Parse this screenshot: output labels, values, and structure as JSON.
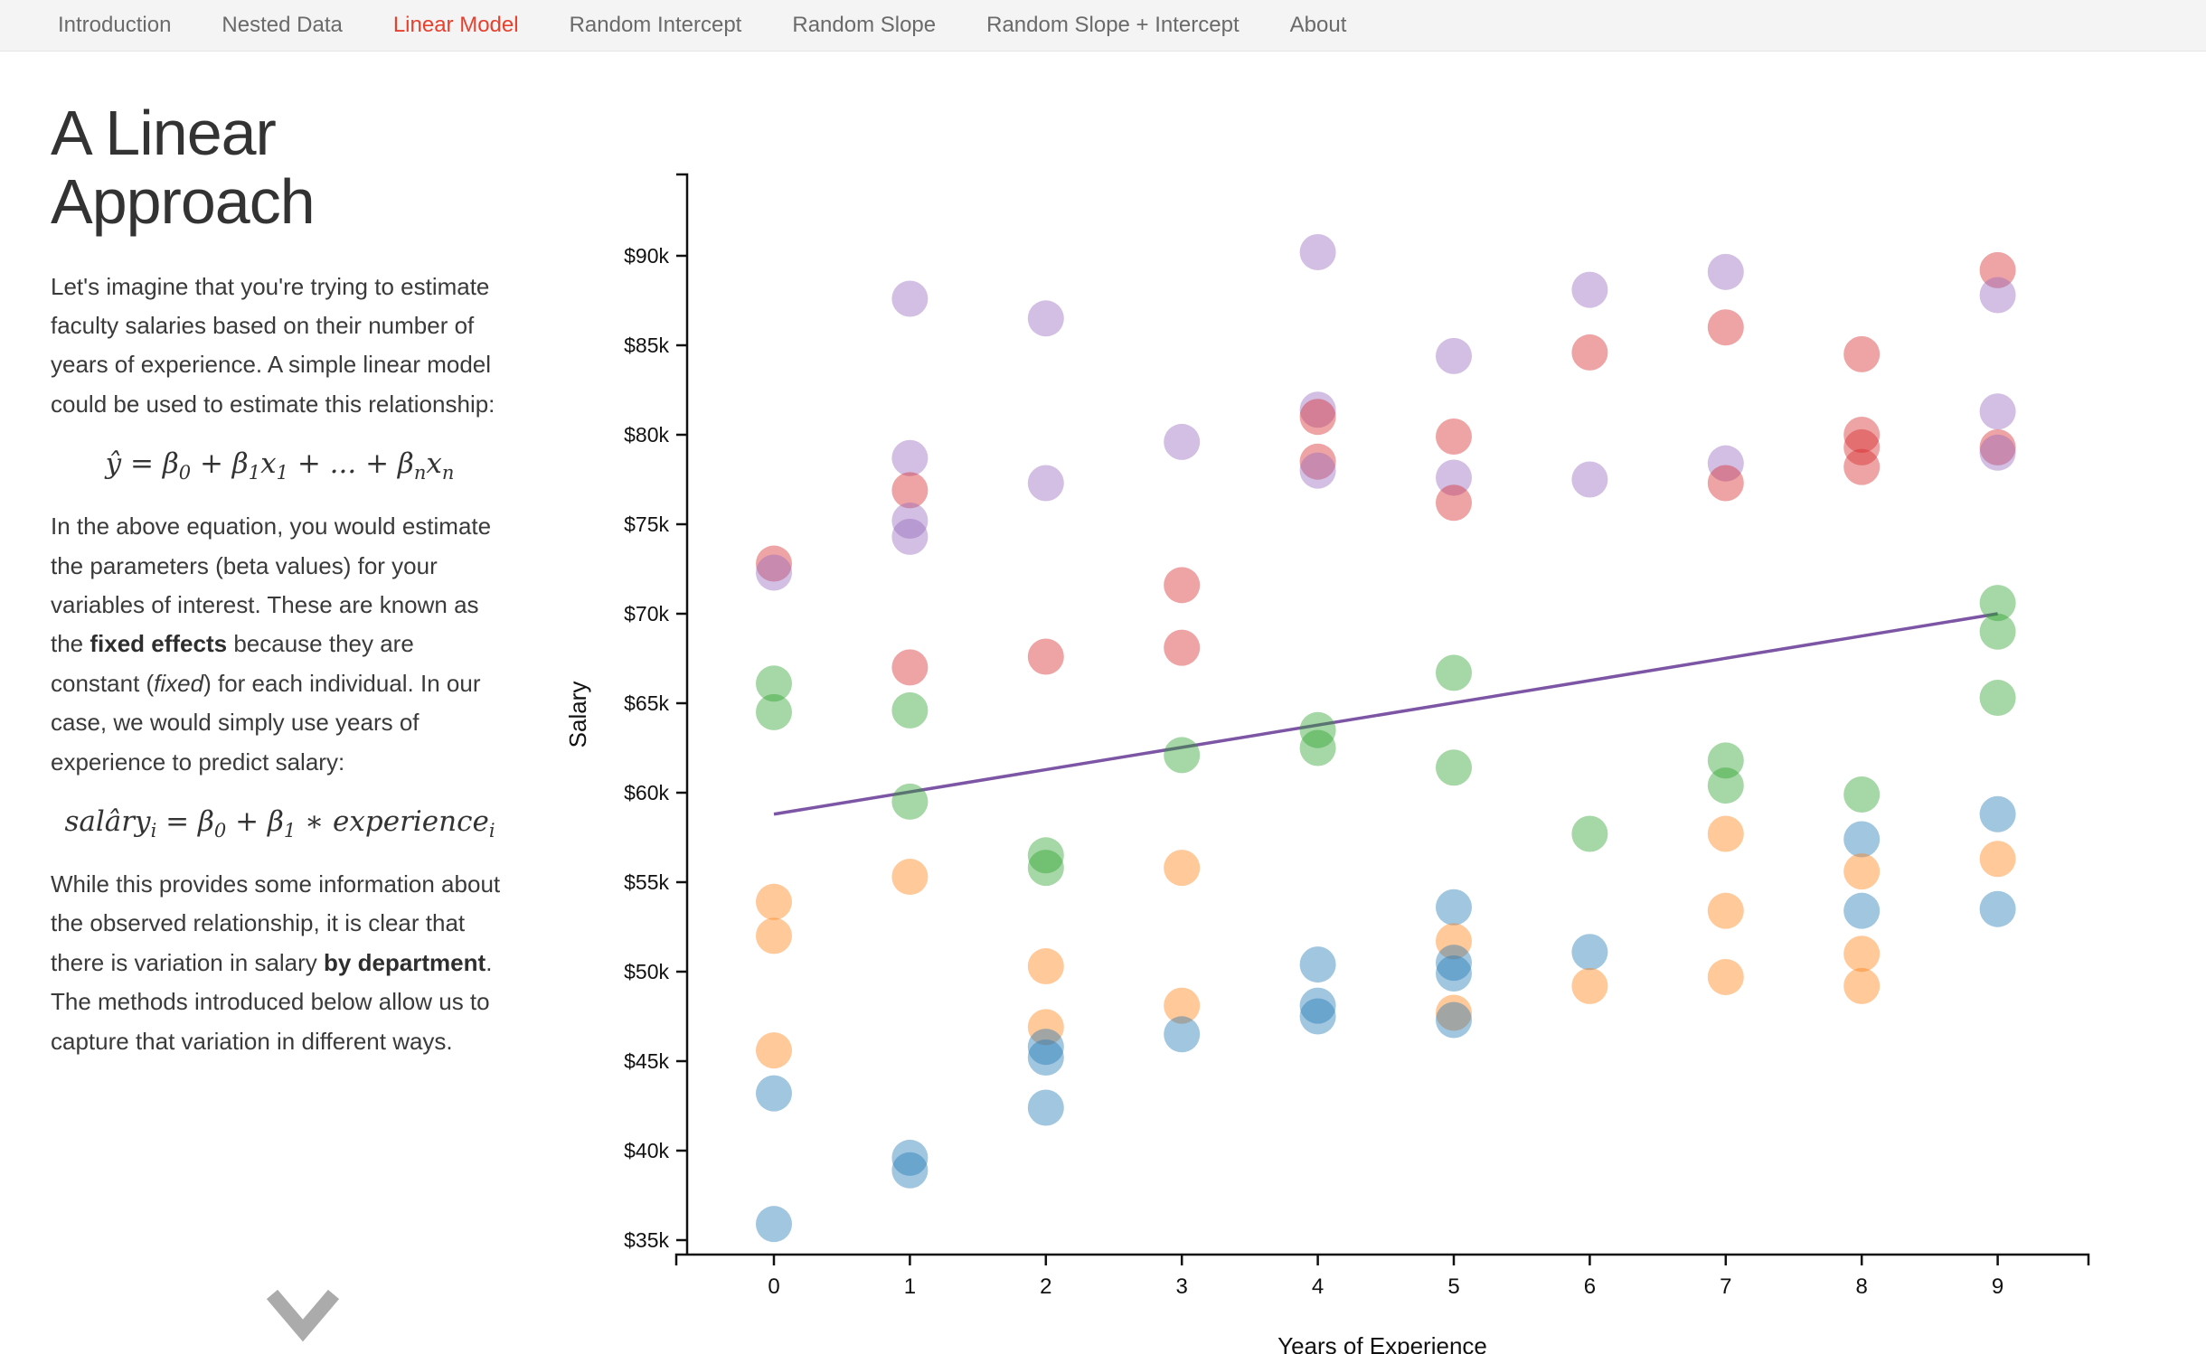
{
  "nav": {
    "items": [
      {
        "label": "Introduction",
        "active": false
      },
      {
        "label": "Nested Data",
        "active": false
      },
      {
        "label": "Linear Model",
        "active": true
      },
      {
        "label": "Random Intercept",
        "active": false
      },
      {
        "label": "Random Slope",
        "active": false
      },
      {
        "label": "Random Slope + Intercept",
        "active": false
      },
      {
        "label": "About",
        "active": false
      }
    ],
    "active_color": "#e8402f"
  },
  "article": {
    "title": "A Linear Approach",
    "p1": "Let's imagine that you're trying to estimate faculty salaries based on their number of years of experience. A simple linear model could be used to estimate this relationship:",
    "p2": [
      {
        "v": "In the above equation, you would estimate the parameters (beta values) for your variables of interest. These are known as the "
      },
      {
        "v": "fixed effects",
        "bold": true
      },
      {
        "v": " because they are constant ("
      },
      {
        "v": "fixed",
        "italic": true
      },
      {
        "v": ") for each individual. In our case, we would simply use years of experience to predict salary:"
      }
    ],
    "p3": [
      {
        "v": "While this provides some information about the observed relationship, it is clear that there is variation in salary "
      },
      {
        "v": "by department",
        "bold": true
      },
      {
        "v": ". The methods introduced below allow us to capture that variation in different ways."
      }
    ],
    "equations": {
      "linear": [
        {
          "v": "ŷ = β"
        },
        {
          "v": "0",
          "sub": true
        },
        {
          "v": " + β"
        },
        {
          "v": "1",
          "sub": true
        },
        {
          "v": "x"
        },
        {
          "v": "1",
          "sub": true
        },
        {
          "v": " + ... + β"
        },
        {
          "v": "n",
          "sub": true
        },
        {
          "v": "x"
        },
        {
          "v": "n",
          "sub": true
        }
      ],
      "salary": [
        {
          "v": "salâry"
        },
        {
          "v": "i",
          "sub": true
        },
        {
          "v": " = β"
        },
        {
          "v": "0",
          "sub": true
        },
        {
          "v": " + β"
        },
        {
          "v": "1",
          "sub": true
        },
        {
          "v": " ∗ experience"
        },
        {
          "v": "i",
          "sub": true
        }
      ]
    }
  },
  "chart_data": {
    "type": "scatter",
    "xlabel": "Years of Experience",
    "ylabel": "Salary",
    "x_ticks": [
      0,
      1,
      2,
      3,
      4,
      5,
      6,
      7,
      8,
      9
    ],
    "y_ticks": [
      {
        "value": 35,
        "label": "$35k"
      },
      {
        "value": 40,
        "label": "$40k"
      },
      {
        "value": 45,
        "label": "$45k"
      },
      {
        "value": 50,
        "label": "$50k"
      },
      {
        "value": 55,
        "label": "$55k"
      },
      {
        "value": 60,
        "label": "$60k"
      },
      {
        "value": 65,
        "label": "$65k"
      },
      {
        "value": 70,
        "label": "$70k"
      },
      {
        "value": 75,
        "label": "$75k"
      },
      {
        "value": 80,
        "label": "$80k"
      },
      {
        "value": 85,
        "label": "$85k"
      },
      {
        "value": 90,
        "label": "$90k"
      }
    ],
    "xlim": [
      -0.72,
      9.67
    ],
    "ylim": [
      34.2,
      94.5
    ],
    "y_units": "thousands of dollars",
    "departments": {
      "blue": "#1f77b4",
      "orange": "#ff7f0e",
      "green": "#2ca02c",
      "red": "#d62728",
      "purple": "#9467bd"
    },
    "point_opacity": 0.42,
    "point_radius": 20,
    "trend_line": {
      "x1": 0,
      "y1": 58.8,
      "x2": 9,
      "y2": 70.0,
      "color": "#7d55a5"
    },
    "points": [
      {
        "x": 0,
        "y": 72.8,
        "d": "red"
      },
      {
        "x": 0,
        "y": 72.3,
        "d": "purple"
      },
      {
        "x": 0,
        "y": 66.1,
        "d": "green"
      },
      {
        "x": 0,
        "y": 64.5,
        "d": "green"
      },
      {
        "x": 0,
        "y": 53.9,
        "d": "orange"
      },
      {
        "x": 0,
        "y": 52.0,
        "d": "orange"
      },
      {
        "x": 0,
        "y": 45.6,
        "d": "orange"
      },
      {
        "x": 0,
        "y": 43.2,
        "d": "blue"
      },
      {
        "x": 0,
        "y": 35.9,
        "d": "blue"
      },
      {
        "x": 1,
        "y": 87.6,
        "d": "purple"
      },
      {
        "x": 1,
        "y": 78.7,
        "d": "purple"
      },
      {
        "x": 1,
        "y": 76.9,
        "d": "red"
      },
      {
        "x": 1,
        "y": 75.2,
        "d": "purple"
      },
      {
        "x": 1,
        "y": 74.3,
        "d": "purple"
      },
      {
        "x": 1,
        "y": 67.0,
        "d": "red"
      },
      {
        "x": 1,
        "y": 64.6,
        "d": "green"
      },
      {
        "x": 1,
        "y": 59.5,
        "d": "green"
      },
      {
        "x": 1,
        "y": 55.3,
        "d": "orange"
      },
      {
        "x": 1,
        "y": 39.6,
        "d": "blue"
      },
      {
        "x": 1,
        "y": 38.9,
        "d": "blue"
      },
      {
        "x": 2,
        "y": 86.5,
        "d": "purple"
      },
      {
        "x": 2,
        "y": 77.3,
        "d": "purple"
      },
      {
        "x": 2,
        "y": 67.6,
        "d": "red"
      },
      {
        "x": 2,
        "y": 56.5,
        "d": "green"
      },
      {
        "x": 2,
        "y": 55.8,
        "d": "green"
      },
      {
        "x": 2,
        "y": 50.3,
        "d": "orange"
      },
      {
        "x": 2,
        "y": 46.9,
        "d": "orange"
      },
      {
        "x": 2,
        "y": 45.8,
        "d": "blue"
      },
      {
        "x": 2,
        "y": 45.2,
        "d": "blue"
      },
      {
        "x": 2,
        "y": 42.4,
        "d": "blue"
      },
      {
        "x": 3,
        "y": 79.6,
        "d": "purple"
      },
      {
        "x": 3,
        "y": 71.6,
        "d": "red"
      },
      {
        "x": 3,
        "y": 68.1,
        "d": "red"
      },
      {
        "x": 3,
        "y": 62.1,
        "d": "green"
      },
      {
        "x": 3,
        "y": 55.8,
        "d": "orange"
      },
      {
        "x": 3,
        "y": 48.1,
        "d": "orange"
      },
      {
        "x": 3,
        "y": 46.5,
        "d": "blue"
      },
      {
        "x": 4,
        "y": 90.2,
        "d": "purple"
      },
      {
        "x": 4,
        "y": 81.4,
        "d": "purple"
      },
      {
        "x": 4,
        "y": 81.0,
        "d": "red"
      },
      {
        "x": 4,
        "y": 78.5,
        "d": "red"
      },
      {
        "x": 4,
        "y": 78.0,
        "d": "purple"
      },
      {
        "x": 4,
        "y": 63.5,
        "d": "green"
      },
      {
        "x": 4,
        "y": 62.5,
        "d": "green"
      },
      {
        "x": 4,
        "y": 50.4,
        "d": "blue"
      },
      {
        "x": 4,
        "y": 48.1,
        "d": "blue"
      },
      {
        "x": 4,
        "y": 47.5,
        "d": "blue"
      },
      {
        "x": 5,
        "y": 84.4,
        "d": "purple"
      },
      {
        "x": 5,
        "y": 79.9,
        "d": "red"
      },
      {
        "x": 5,
        "y": 77.6,
        "d": "purple"
      },
      {
        "x": 5,
        "y": 76.2,
        "d": "red"
      },
      {
        "x": 5,
        "y": 66.7,
        "d": "green"
      },
      {
        "x": 5,
        "y": 61.4,
        "d": "green"
      },
      {
        "x": 5,
        "y": 53.6,
        "d": "blue"
      },
      {
        "x": 5,
        "y": 51.7,
        "d": "orange"
      },
      {
        "x": 5,
        "y": 50.5,
        "d": "blue"
      },
      {
        "x": 5,
        "y": 49.9,
        "d": "blue"
      },
      {
        "x": 5,
        "y": 47.7,
        "d": "orange"
      },
      {
        "x": 5,
        "y": 47.3,
        "d": "blue"
      },
      {
        "x": 6,
        "y": 88.1,
        "d": "purple"
      },
      {
        "x": 6,
        "y": 84.6,
        "d": "red"
      },
      {
        "x": 6,
        "y": 77.5,
        "d": "purple"
      },
      {
        "x": 6,
        "y": 57.7,
        "d": "green"
      },
      {
        "x": 6,
        "y": 51.1,
        "d": "blue"
      },
      {
        "x": 6,
        "y": 49.2,
        "d": "orange"
      },
      {
        "x": 7,
        "y": 89.1,
        "d": "purple"
      },
      {
        "x": 7,
        "y": 86.0,
        "d": "red"
      },
      {
        "x": 7,
        "y": 78.4,
        "d": "purple"
      },
      {
        "x": 7,
        "y": 77.3,
        "d": "red"
      },
      {
        "x": 7,
        "y": 61.8,
        "d": "green"
      },
      {
        "x": 7,
        "y": 60.4,
        "d": "green"
      },
      {
        "x": 7,
        "y": 57.7,
        "d": "orange"
      },
      {
        "x": 7,
        "y": 53.4,
        "d": "orange"
      },
      {
        "x": 7,
        "y": 49.7,
        "d": "orange"
      },
      {
        "x": 8,
        "y": 84.5,
        "d": "red"
      },
      {
        "x": 8,
        "y": 80.0,
        "d": "red"
      },
      {
        "x": 8,
        "y": 79.3,
        "d": "red"
      },
      {
        "x": 8,
        "y": 78.2,
        "d": "red"
      },
      {
        "x": 8,
        "y": 59.9,
        "d": "green"
      },
      {
        "x": 8,
        "y": 57.4,
        "d": "blue"
      },
      {
        "x": 8,
        "y": 55.6,
        "d": "orange"
      },
      {
        "x": 8,
        "y": 53.4,
        "d": "blue"
      },
      {
        "x": 8,
        "y": 51.0,
        "d": "orange"
      },
      {
        "x": 8,
        "y": 49.2,
        "d": "orange"
      },
      {
        "x": 9,
        "y": 89.2,
        "d": "red"
      },
      {
        "x": 9,
        "y": 87.8,
        "d": "purple"
      },
      {
        "x": 9,
        "y": 81.3,
        "d": "purple"
      },
      {
        "x": 9,
        "y": 79.3,
        "d": "red"
      },
      {
        "x": 9,
        "y": 79.0,
        "d": "purple"
      },
      {
        "x": 9,
        "y": 70.6,
        "d": "green"
      },
      {
        "x": 9,
        "y": 69.0,
        "d": "green"
      },
      {
        "x": 9,
        "y": 65.3,
        "d": "green"
      },
      {
        "x": 9,
        "y": 58.8,
        "d": "blue"
      },
      {
        "x": 9,
        "y": 56.3,
        "d": "orange"
      },
      {
        "x": 9,
        "y": 53.5,
        "d": "blue"
      }
    ]
  }
}
